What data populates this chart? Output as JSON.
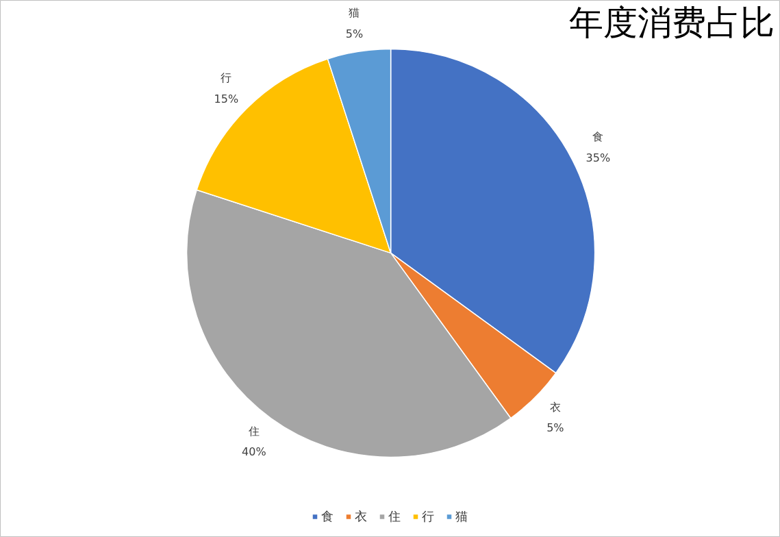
{
  "chart_data": {
    "type": "pie",
    "title": "年度消费占比",
    "categories": [
      "食",
      "衣",
      "住",
      "行",
      "猫"
    ],
    "values": [
      35,
      5,
      40,
      15,
      5
    ],
    "colors": [
      "#4472c4",
      "#ed7d31",
      "#a5a5a5",
      "#ffc000",
      "#5b9bd5"
    ],
    "value_labels": [
      "35%",
      "5%",
      "40%",
      "15%",
      "5%"
    ],
    "legend": "bottom"
  }
}
